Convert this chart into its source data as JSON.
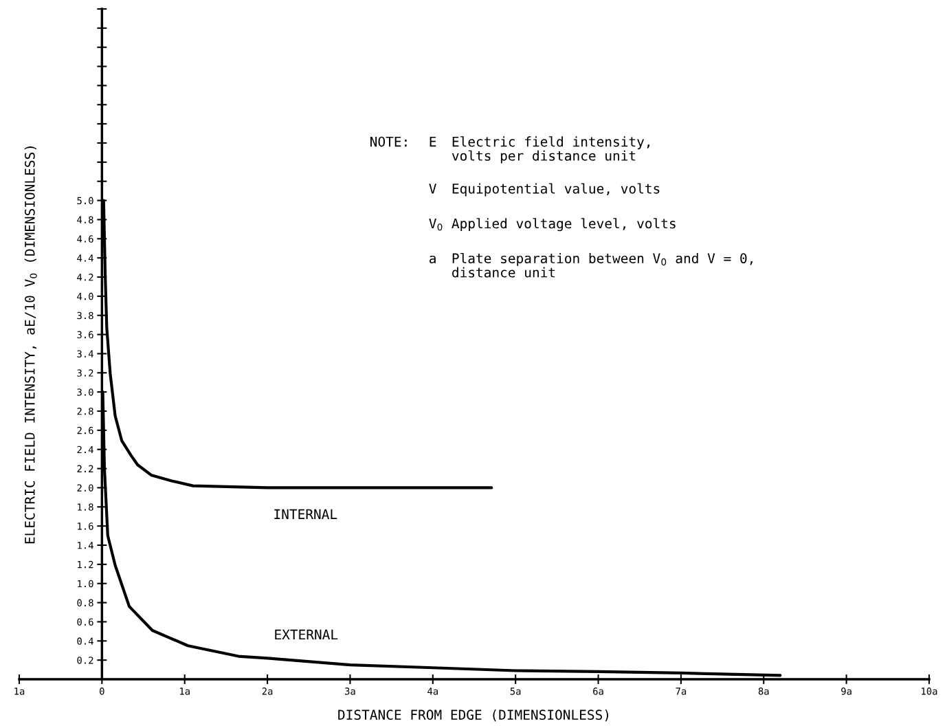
{
  "chart_data": {
    "type": "line",
    "xlabel": "DISTANCE FROM EDGE (DIMENSIONLESS)",
    "ylabel": "ELECTRIC FIELD INTENSITY, aE/10 V$_{0}$ (DIMENSIONLESS)",
    "xlim": [
      -1,
      10
    ],
    "ylim": [
      0,
      7.0
    ],
    "xticks": [
      {
        "value": -1,
        "label": "1a"
      },
      0,
      {
        "value": 1,
        "label": "1a"
      },
      {
        "value": 2,
        "label": "2a"
      },
      {
        "value": 3,
        "label": "3a"
      },
      {
        "value": 4,
        "label": "4a"
      },
      {
        "value": 5,
        "label": "5a"
      },
      {
        "value": 6,
        "label": "6a"
      },
      {
        "value": 7,
        "label": "7a"
      },
      {
        "value": 8,
        "label": "8a"
      },
      {
        "value": 9,
        "label": "9a"
      },
      {
        "value": 10,
        "label": "10a"
      }
    ],
    "yticks": [
      {
        "value": 0.2,
        "label": "0.2"
      },
      {
        "value": 0.4,
        "label": "0.4"
      },
      {
        "value": 0.6,
        "label": "0.6"
      },
      {
        "value": 0.8,
        "label": "0.8"
      },
      {
        "value": 1.0,
        "label": "1.0"
      },
      {
        "value": 1.2,
        "label": "1.2"
      },
      {
        "value": 1.4,
        "label": "1.4"
      },
      {
        "value": 1.6,
        "label": "1.6"
      },
      {
        "value": 1.8,
        "label": "1.8"
      },
      {
        "value": 2.0,
        "label": "2.0"
      },
      {
        "value": 2.2,
        "label": "2.2"
      },
      {
        "value": 2.4,
        "label": "2.4"
      },
      {
        "value": 2.6,
        "label": "2.6"
      },
      {
        "value": 2.8,
        "label": "2.8"
      },
      {
        "value": 3.0,
        "label": "3.0"
      },
      {
        "value": 3.2,
        "label": "3.2"
      },
      {
        "value": 3.4,
        "label": "3.4"
      },
      {
        "value": 3.6,
        "label": "3.6"
      },
      {
        "value": 3.8,
        "label": "3.8"
      },
      {
        "value": 4.0,
        "label": "4.0"
      },
      {
        "value": 4.2,
        "label": "4.2"
      },
      {
        "value": 4.4,
        "label": "4.4"
      },
      {
        "value": 4.6,
        "label": "4.6"
      },
      {
        "value": 4.8,
        "label": "4.8"
      },
      {
        "value": 5.0,
        "label": "5.0"
      },
      {
        "value": 5.2,
        "label": null
      },
      {
        "value": 5.4,
        "label": null
      },
      {
        "value": 5.6,
        "label": null
      },
      {
        "value": 5.8,
        "label": null
      },
      {
        "value": 6.0,
        "label": null
      },
      {
        "value": 6.2,
        "label": null
      },
      {
        "value": 6.4,
        "label": null
      },
      {
        "value": 6.6,
        "label": null
      },
      {
        "value": 6.8,
        "label": null
      },
      {
        "value": 7.0,
        "label": null
      }
    ],
    "grid": false,
    "legend": false,
    "marker": "none",
    "line_style": "solid",
    "series": [
      {
        "name": "INTERNAL",
        "color": "#000000",
        "x": [
          0.02,
          0.04,
          0.058,
          0.1,
          0.16,
          0.24,
          0.35,
          0.43,
          0.6,
          0.85,
          1.1,
          2.0,
          3.0,
          4.0,
          4.71
        ],
        "values": [
          5.0,
          4.2,
          3.67,
          3.19,
          2.75,
          2.49,
          2.34,
          2.24,
          2.13,
          2.07,
          2.02,
          2.0,
          2.0,
          2.0,
          2.0
        ]
      },
      {
        "name": "EXTERNAL",
        "color": "#000000",
        "x": [
          0.01,
          0.03,
          0.07,
          0.16,
          0.33,
          0.61,
          1.04,
          1.65,
          2.0,
          3.0,
          4.0,
          5.0,
          6.0,
          7.0,
          8.2
        ],
        "values": [
          3.0,
          2.2,
          1.5,
          1.19,
          0.76,
          0.51,
          0.35,
          0.24,
          0.22,
          0.15,
          0.12,
          0.09,
          0.08,
          0.065,
          0.04
        ]
      }
    ],
    "annotations": [
      "NOTE:",
      "E",
      "Electric field intensity,\nvolts per distance unit",
      "V",
      "Equipotential value, volts",
      "V$_{0}$",
      "Applied voltage level, volts",
      "a",
      "Plate separation between V$_{0}$ and V = 0,\ndistance unit"
    ]
  }
}
